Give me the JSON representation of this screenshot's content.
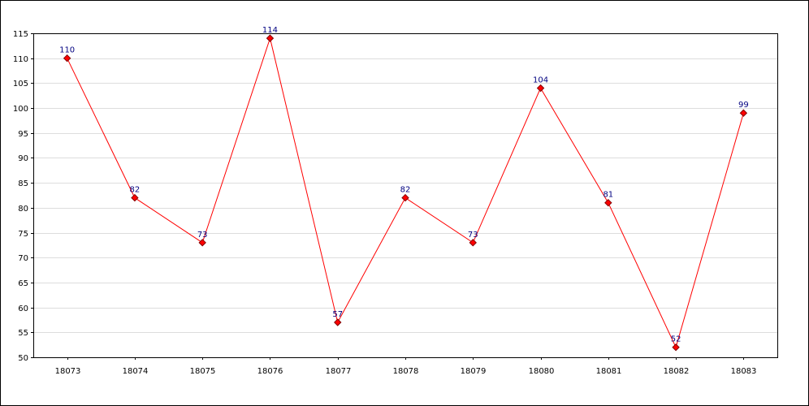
{
  "chart_data": {
    "type": "line",
    "categories": [
      "18073",
      "18074",
      "18075",
      "18076",
      "18077",
      "18078",
      "18079",
      "18080",
      "18081",
      "18082",
      "18083"
    ],
    "series": [
      {
        "values": [
          110,
          82,
          73,
          114,
          57,
          82,
          73,
          104,
          81,
          52,
          99
        ],
        "color": "#ff0000"
      }
    ],
    "title": "",
    "xlabel": "",
    "ylabel": "",
    "ylim": [
      50,
      115
    ],
    "yticks": [
      50,
      55,
      60,
      65,
      70,
      75,
      80,
      85,
      90,
      95,
      100,
      105,
      110,
      115
    ],
    "grid": true,
    "data_labels": true,
    "colors": {
      "line": "#ff0000",
      "marker_fill": "#ff0000",
      "marker_stroke": "#800000",
      "grid": "#dddddd",
      "axis": "#000000",
      "label": "#000080"
    }
  }
}
